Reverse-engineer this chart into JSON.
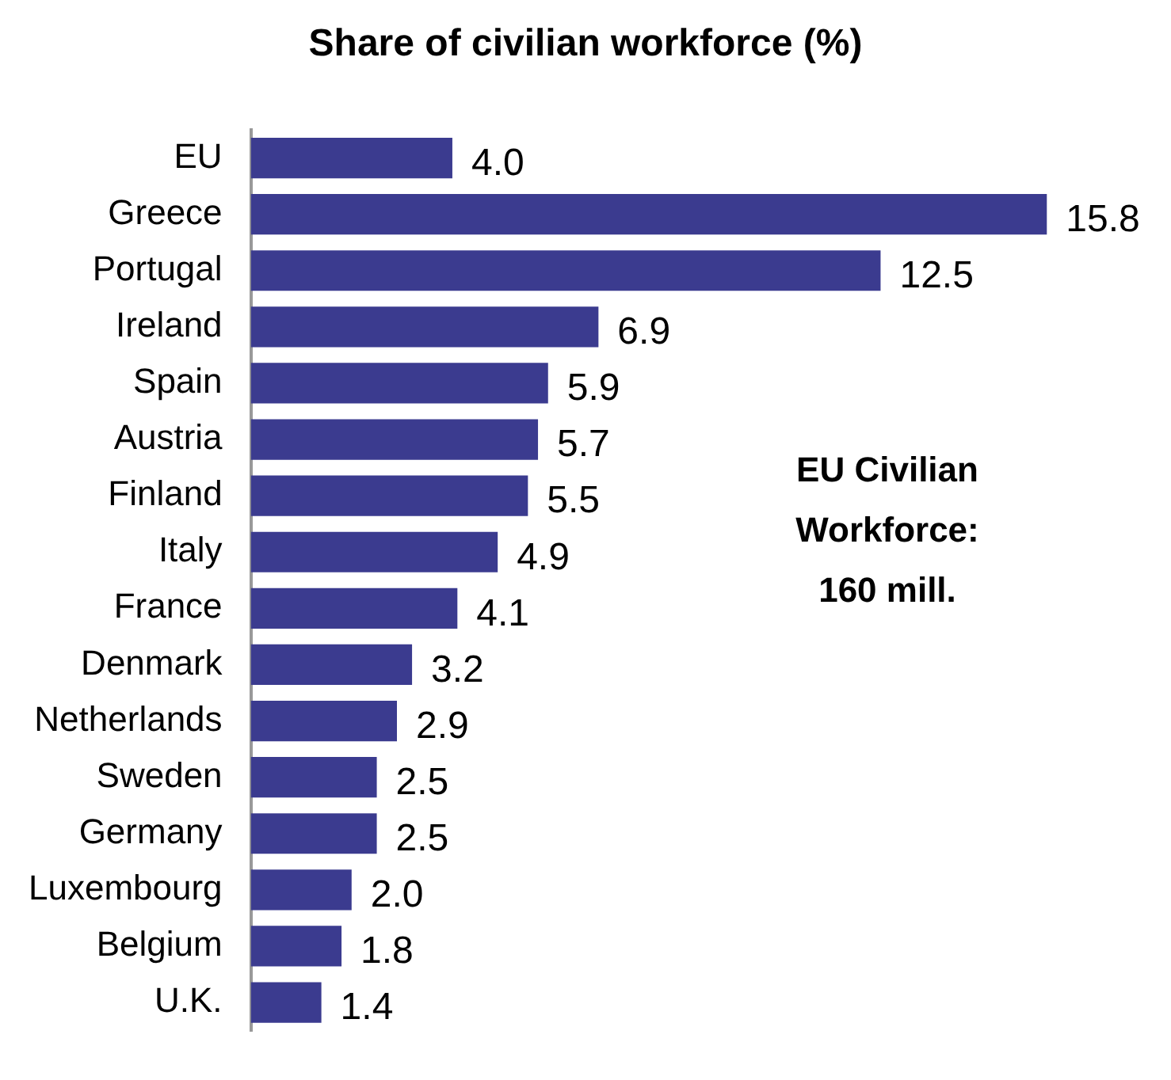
{
  "chart_data": {
    "type": "bar",
    "orientation": "horizontal",
    "title": "Share of civilian workforce (%)",
    "categories": [
      "EU",
      "Greece",
      "Portugal",
      "Ireland",
      "Spain",
      "Austria",
      "Finland",
      "Italy",
      "France",
      "Denmark",
      "Netherlands",
      "Sweden",
      "Germany",
      "Luxembourg",
      "Belgium",
      "U.K."
    ],
    "values": [
      4.0,
      15.8,
      12.5,
      6.9,
      5.9,
      5.7,
      5.5,
      4.9,
      4.1,
      3.2,
      2.9,
      2.5,
      2.5,
      2.0,
      1.8,
      1.4
    ],
    "value_labels": [
      "4.0",
      "15.8",
      "12.5",
      "6.9",
      "5.9",
      "5.7",
      "5.5",
      "4.9",
      "4.1",
      "3.2",
      "2.9",
      "2.5",
      "2.5",
      "2.0",
      "1.8",
      "1.4"
    ],
    "color": "#3b3b8f",
    "tick_labels": "y",
    "legend": false,
    "annotations": [
      "EU Civilian\nWorkforce:\n160 mill."
    ]
  }
}
